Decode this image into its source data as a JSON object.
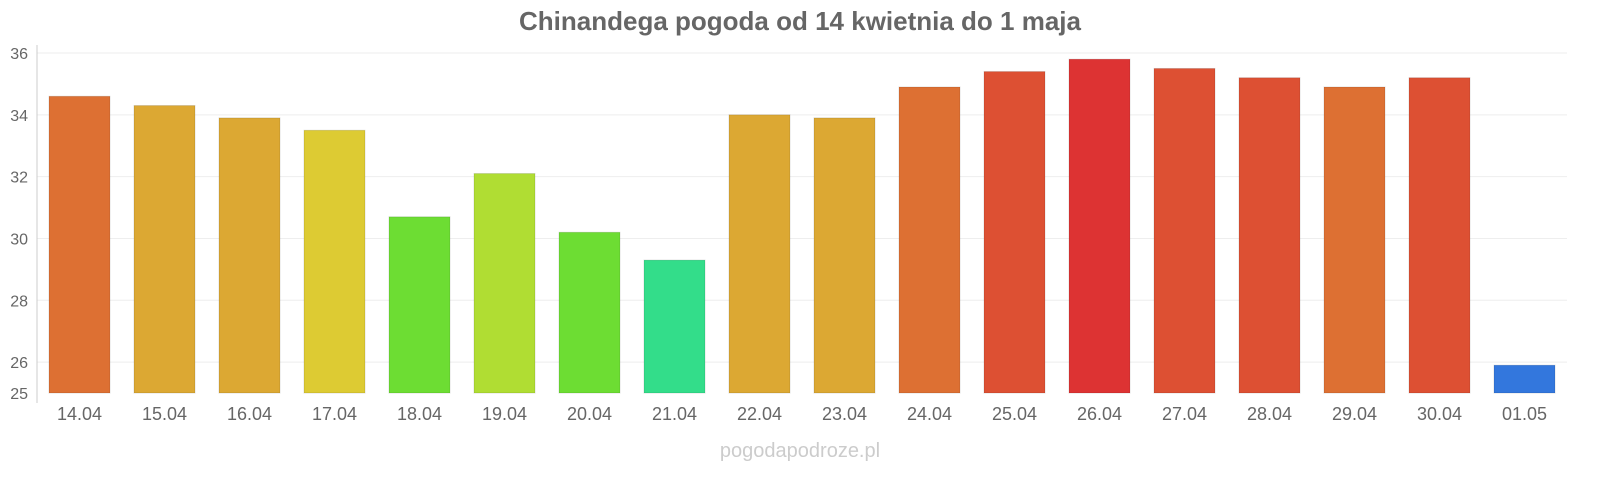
{
  "chart_data": {
    "type": "bar",
    "title": "Chinandega pogoda od 14 kwietnia do 1 maja",
    "xlabel": "",
    "ylabel": "",
    "ylim": [
      25,
      36
    ],
    "yticks": [
      25,
      26,
      28,
      30,
      32,
      34,
      36
    ],
    "grid": true,
    "categories": [
      "14.04",
      "15.04",
      "16.04",
      "17.04",
      "18.04",
      "19.04",
      "20.04",
      "21.04",
      "22.04",
      "23.04",
      "24.04",
      "25.04",
      "26.04",
      "27.04",
      "28.04",
      "29.04",
      "30.04",
      "01.05"
    ],
    "values": [
      34.6,
      34.3,
      33.9,
      33.5,
      30.7,
      32.1,
      30.2,
      29.3,
      34.0,
      33.9,
      34.9,
      35.4,
      35.8,
      35.5,
      35.2,
      34.9,
      35.2,
      25.9
    ],
    "colors": [
      "#dd7033",
      "#dca833",
      "#dca833",
      "#ddcb33",
      "#6ddd33",
      "#b0dd33",
      "#6ddd33",
      "#33dd8a",
      "#dca833",
      "#dca833",
      "#dd7033",
      "#dd5033",
      "#dd3333",
      "#dd5033",
      "#dd5033",
      "#dd7033",
      "#dd5033",
      "#3377dd"
    ]
  },
  "watermark": "pogodapodroze.pl"
}
